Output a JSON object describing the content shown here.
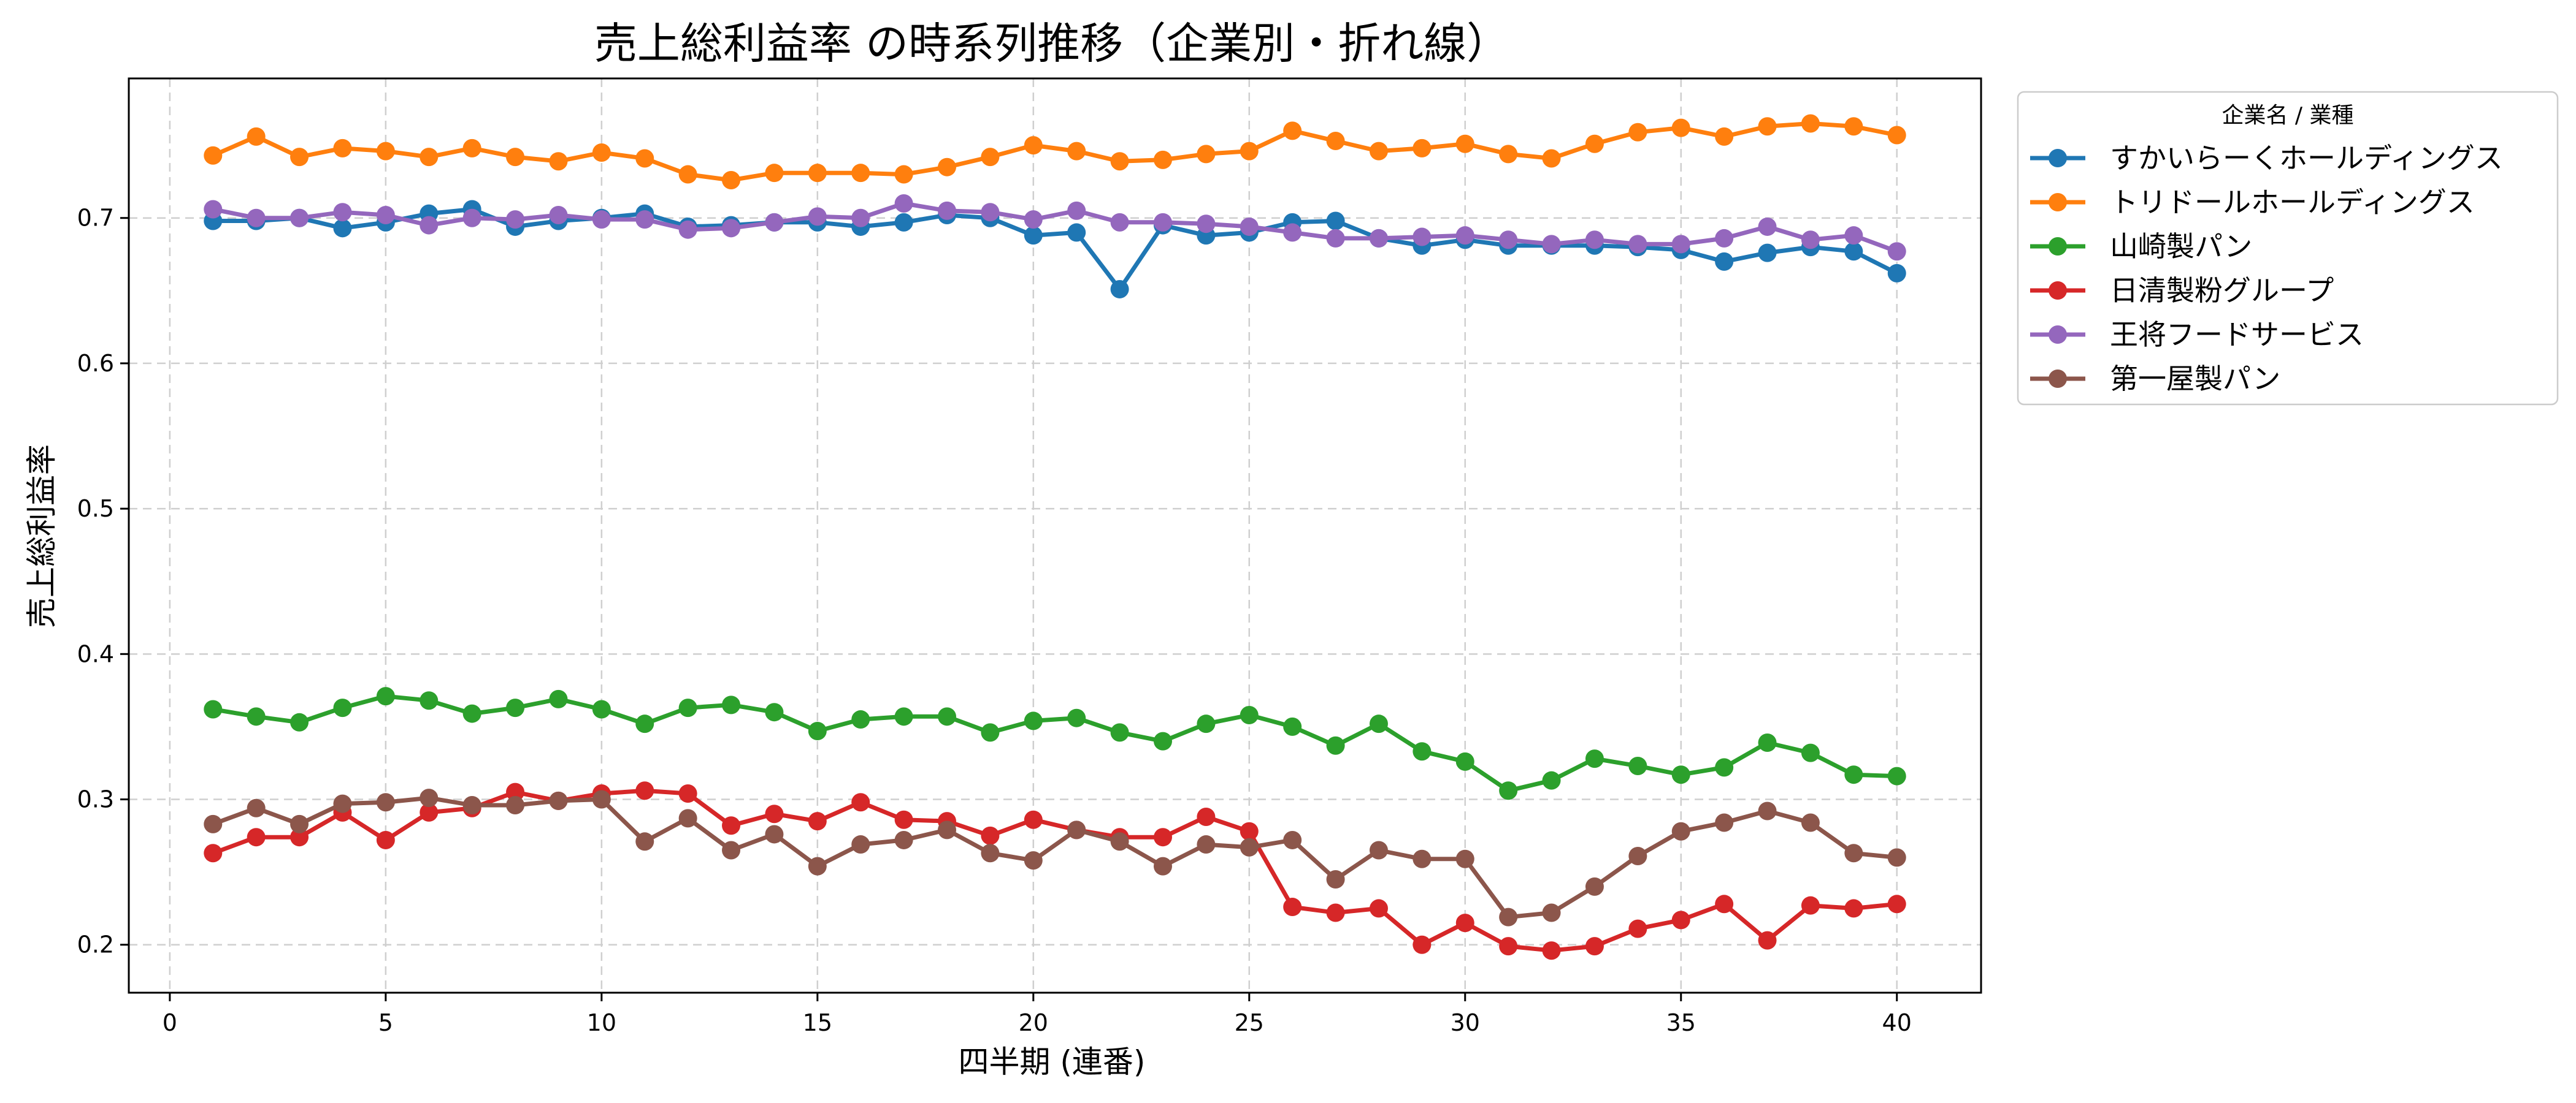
{
  "chart_data": {
    "type": "line",
    "title": "売上総利益率 の時系列推移（企業別・折れ線）",
    "xlabel": "四半期 (連番)",
    "ylabel": "売上総利益率",
    "xlim": [
      -0.95,
      41.95
    ],
    "ylim": [
      0.167,
      0.796
    ],
    "xticks": [
      0,
      5,
      10,
      15,
      20,
      25,
      30,
      35,
      40
    ],
    "yticks": [
      0.2,
      0.3,
      0.4,
      0.5,
      0.6,
      0.7
    ],
    "ytick_labels": [
      "0.2",
      "0.3",
      "0.4",
      "0.5",
      "0.6",
      "0.7"
    ],
    "grid": true,
    "legend": {
      "title": "企業名 / 業種",
      "placement": "outside right, top"
    },
    "x": [
      1,
      2,
      3,
      4,
      5,
      6,
      7,
      8,
      9,
      10,
      11,
      12,
      13,
      14,
      15,
      16,
      17,
      18,
      19,
      20,
      21,
      22,
      23,
      24,
      25,
      26,
      27,
      28,
      29,
      30,
      31,
      32,
      33,
      34,
      35,
      36,
      37,
      38,
      39,
      40
    ],
    "series": [
      {
        "name": "すかいらーくホールディングス",
        "color": "#1f77b4",
        "values": [
          0.698,
          0.698,
          0.7,
          0.693,
          0.697,
          0.703,
          0.706,
          0.694,
          0.698,
          0.7,
          0.703,
          0.694,
          0.695,
          0.697,
          0.697,
          0.694,
          0.697,
          0.702,
          0.7,
          0.688,
          0.69,
          0.651,
          0.695,
          0.688,
          0.69,
          0.697,
          0.698,
          0.686,
          0.681,
          0.685,
          0.681,
          0.681,
          0.681,
          0.68,
          0.678,
          0.67,
          0.676,
          0.68,
          0.677,
          0.662
        ]
      },
      {
        "name": "トリドールホールディングス",
        "color": "#ff7f0e",
        "values": [
          0.743,
          0.756,
          0.742,
          0.748,
          0.746,
          0.742,
          0.748,
          0.742,
          0.739,
          0.745,
          0.741,
          0.73,
          0.726,
          0.731,
          0.731,
          0.731,
          0.73,
          0.735,
          0.742,
          0.75,
          0.746,
          0.739,
          0.74,
          0.744,
          0.746,
          0.76,
          0.753,
          0.746,
          0.748,
          0.751,
          0.744,
          0.741,
          0.751,
          0.759,
          0.762,
          0.756,
          0.763,
          0.765,
          0.763,
          0.757
        ]
      },
      {
        "name": "山崎製パン",
        "color": "#2ca02c",
        "values": [
          0.362,
          0.357,
          0.353,
          0.363,
          0.371,
          0.368,
          0.359,
          0.363,
          0.369,
          0.362,
          0.352,
          0.363,
          0.365,
          0.36,
          0.347,
          0.355,
          0.357,
          0.357,
          0.346,
          0.354,
          0.356,
          0.346,
          0.34,
          0.352,
          0.358,
          0.35,
          0.337,
          0.352,
          0.333,
          0.326,
          0.306,
          0.313,
          0.328,
          0.323,
          0.317,
          0.322,
          0.339,
          0.332,
          0.317,
          0.316
        ]
      },
      {
        "name": "日清製粉グループ",
        "color": "#d62728",
        "values": [
          0.263,
          0.274,
          0.274,
          0.291,
          0.272,
          0.291,
          0.294,
          0.305,
          0.299,
          0.304,
          0.306,
          0.304,
          0.282,
          0.29,
          0.285,
          0.298,
          0.286,
          0.285,
          0.275,
          0.286,
          0.279,
          0.274,
          0.274,
          0.288,
          0.278,
          0.226,
          0.222,
          0.225,
          0.2,
          0.215,
          0.199,
          0.196,
          0.199,
          0.211,
          0.217,
          0.228,
          0.203,
          0.227,
          0.225,
          0.228
        ]
      },
      {
        "name": "王将フードサービス",
        "color": "#9467bd",
        "values": [
          0.706,
          0.7,
          0.7,
          0.704,
          0.702,
          0.695,
          0.7,
          0.699,
          0.702,
          0.699,
          0.699,
          0.692,
          0.693,
          0.697,
          0.701,
          0.7,
          0.71,
          0.705,
          0.704,
          0.699,
          0.705,
          0.697,
          0.697,
          0.696,
          0.694,
          0.69,
          0.686,
          0.686,
          0.687,
          0.688,
          0.685,
          0.682,
          0.685,
          0.682,
          0.682,
          0.686,
          0.694,
          0.685,
          0.688,
          0.677
        ]
      },
      {
        "name": "第一屋製パン",
        "color": "#8c564b",
        "values": [
          0.283,
          0.294,
          0.283,
          0.297,
          0.298,
          0.301,
          0.296,
          0.296,
          0.299,
          0.3,
          0.271,
          0.287,
          0.265,
          0.276,
          0.254,
          0.269,
          0.272,
          0.279,
          0.263,
          0.258,
          0.279,
          0.271,
          0.254,
          0.269,
          0.267,
          0.272,
          0.245,
          0.265,
          0.259,
          0.259,
          0.219,
          0.222,
          0.24,
          0.261,
          0.278,
          0.284,
          0.292,
          0.284,
          0.263,
          0.26
        ]
      }
    ]
  }
}
